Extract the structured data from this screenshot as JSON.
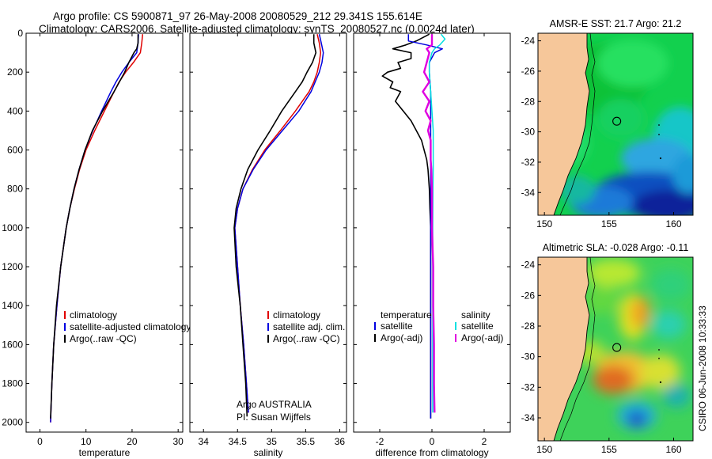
{
  "header": {
    "line1": "Argo profile: CS 5900871_97 26-May-2008 20080529_212 29.341S 155.614E",
    "line2": "Climatology: CARS2006. Satellite-adjusted climatology: synTS_20080527.nc (0.0024d later)"
  },
  "chart_data": [
    {
      "type": "line",
      "panel": "temperature",
      "xlabel": "temperature",
      "ylabel": "",
      "xlim": [
        -3,
        31
      ],
      "ylim": [
        2050,
        0
      ],
      "xticks": [
        0,
        10,
        20,
        30
      ],
      "yticks": [
        0,
        200,
        400,
        600,
        800,
        1000,
        1200,
        1400,
        1600,
        1800,
        2000
      ],
      "legend": [
        "climatology",
        "satellite-adjusted climatology",
        "Argo(..raw -QC)"
      ],
      "series": [
        {
          "name": "climatology",
          "color": "#e00000",
          "depth": [
            5,
            50,
            100,
            150,
            200,
            250,
            300,
            400,
            500,
            600,
            700,
            800,
            900,
            1000,
            1200,
            1400,
            1600,
            1800,
            2000
          ],
          "values": [
            22.3,
            22.1,
            21.8,
            20.3,
            18.6,
            17.2,
            16.1,
            14.0,
            11.9,
            10.0,
            8.6,
            7.5,
            6.5,
            5.7,
            4.5,
            3.7,
            3.0,
            2.6,
            2.3
          ]
        },
        {
          "name": "satellite-adjusted climatology",
          "color": "#0000e0",
          "depth": [
            5,
            50,
            100,
            150,
            200,
            250,
            300,
            400,
            500,
            600,
            700,
            800,
            900,
            1000,
            1200,
            1400,
            1600,
            1800,
            2000
          ],
          "values": [
            21.4,
            21.3,
            21.0,
            19.3,
            17.8,
            16.5,
            15.4,
            13.4,
            11.5,
            9.8,
            8.5,
            7.4,
            6.5,
            5.7,
            4.5,
            3.7,
            3.0,
            2.6,
            2.3
          ]
        },
        {
          "name": "Argo(..raw -QC)",
          "color": "#000000",
          "depth": [
            5,
            50,
            80,
            100,
            150,
            200,
            300,
            400,
            500,
            600,
            700,
            800,
            900,
            1000,
            1200,
            1400,
            1600,
            1800,
            1980
          ],
          "values": [
            21.3,
            21.3,
            21.0,
            20.4,
            19.3,
            18.4,
            16.1,
            13.6,
            11.4,
            9.8,
            8.5,
            7.4,
            6.5,
            5.7,
            4.5,
            3.6,
            3.0,
            2.6,
            2.3
          ]
        }
      ]
    },
    {
      "type": "line",
      "panel": "salinity",
      "xlabel": "salinity",
      "ylabel": "",
      "xlim": [
        33.8,
        36.1
      ],
      "ylim": [
        2050,
        0
      ],
      "xticks": [
        34,
        34.5,
        35,
        35.5,
        36
      ],
      "legend": [
        "climatology",
        "satellite adj. clim.",
        "Argo(..raw -QC)"
      ],
      "annotation": [
        "Argo AUSTRALIA",
        "PI: Susan Wijffels"
      ],
      "series": [
        {
          "name": "climatology",
          "color": "#e00000",
          "depth": [
            5,
            50,
            100,
            150,
            200,
            250,
            300,
            400,
            500,
            600,
            700,
            800,
            900,
            1000,
            1200,
            1400,
            1600,
            1800,
            1950
          ],
          "values": [
            35.67,
            35.7,
            35.72,
            35.7,
            35.67,
            35.62,
            35.55,
            35.35,
            35.13,
            34.9,
            34.72,
            34.58,
            34.5,
            34.46,
            34.5,
            34.54,
            34.59,
            34.63,
            34.66
          ]
        },
        {
          "name": "satellite adj. clim.",
          "color": "#0000e0",
          "depth": [
            5,
            50,
            100,
            150,
            200,
            250,
            300,
            400,
            500,
            600,
            700,
            800,
            900,
            1000,
            1200,
            1400,
            1600,
            1800,
            1950
          ],
          "values": [
            35.7,
            35.73,
            35.76,
            35.74,
            35.7,
            35.64,
            35.58,
            35.4,
            35.16,
            34.92,
            34.73,
            34.58,
            34.5,
            34.46,
            34.5,
            34.54,
            34.59,
            34.63,
            34.66
          ]
        },
        {
          "name": "Argo(..raw -QC)",
          "color": "#000000",
          "depth": [
            5,
            50,
            100,
            150,
            200,
            250,
            300,
            400,
            500,
            600,
            700,
            800,
            900,
            1000,
            1200,
            1400,
            1600,
            1800,
            1970
          ],
          "values": [
            35.62,
            35.62,
            35.65,
            35.6,
            35.52,
            35.45,
            35.35,
            35.15,
            34.98,
            34.8,
            34.65,
            34.55,
            34.48,
            34.45,
            34.48,
            34.54,
            34.58,
            34.62,
            34.64
          ]
        }
      ]
    },
    {
      "type": "line",
      "panel": "difference",
      "xlabel": "difference from climatology",
      "ylabel": "",
      "xlim": [
        -3.0,
        3.0
      ],
      "ylim": [
        2050,
        0
      ],
      "xticks": [
        -2,
        0,
        2
      ],
      "legend": {
        "temperature": [
          "satellite",
          "Argo(-adj)"
        ],
        "salinity": [
          "satellite",
          "Argo(-adj)"
        ],
        "headers": [
          "temperature",
          "salinity"
        ]
      },
      "series": [
        {
          "name": "temperature satellite",
          "color": "#0000e0",
          "depth": [
            5,
            40,
            60,
            80,
            100,
            150,
            200,
            300,
            400,
            600,
            800,
            1000,
            1200,
            1400,
            1600,
            1800,
            1980
          ],
          "values": [
            -0.9,
            -0.9,
            -0.2,
            0.4,
            0.1,
            -0.1,
            -0.1,
            -0.05,
            -0.05,
            -0.05,
            -0.05,
            -0.05,
            -0.05,
            -0.05,
            -0.05,
            -0.05,
            -0.05
          ]
        },
        {
          "name": "temperature Argo(-adj)",
          "color": "#000000",
          "depth": [
            5,
            40,
            60,
            80,
            100,
            130,
            150,
            180,
            200,
            220,
            250,
            280,
            300,
            350,
            400,
            450,
            500,
            550,
            600,
            650,
            700,
            800,
            900,
            1000,
            1200,
            1400,
            1600,
            1800,
            1980
          ],
          "values": [
            -0.1,
            -0.6,
            -1.0,
            -1.5,
            -0.8,
            -0.8,
            -1.3,
            -1.2,
            -1.7,
            -1.9,
            -1.5,
            -1.6,
            -1.2,
            -1.4,
            -1.1,
            -0.8,
            -0.6,
            -0.4,
            -0.3,
            -0.2,
            -0.15,
            -0.1,
            -0.08,
            -0.05,
            -0.05,
            -0.05,
            -0.05,
            -0.05,
            -0.05
          ]
        },
        {
          "name": "salinity satellite",
          "color": "#00e0e0",
          "depth": [
            5,
            30,
            60,
            80,
            100,
            150,
            200,
            300,
            400,
            500,
            600,
            700,
            800,
            1000,
            1200,
            1400,
            1600,
            1800,
            1950
          ],
          "values": [
            0.35,
            0.5,
            0.3,
            0.1,
            0.0,
            -0.1,
            -0.1,
            -0.05,
            0.0,
            0.05,
            0.05,
            0.05,
            0.04,
            0.03,
            0.03,
            0.03,
            0.03,
            0.03,
            0.03
          ]
        },
        {
          "name": "salinity Argo(-adj)",
          "color": "#e000e0",
          "depth": [
            5,
            60,
            80,
            100,
            150,
            200,
            250,
            300,
            350,
            400,
            450,
            500,
            550,
            600,
            650,
            700,
            800,
            1000,
            1200,
            1400,
            1600,
            1800,
            1950
          ],
          "values": [
            0.0,
            0.0,
            -0.2,
            -0.1,
            -0.2,
            -0.3,
            -0.1,
            -0.35,
            -0.1,
            -0.25,
            -0.05,
            -0.15,
            -0.05,
            -0.05,
            -0.05,
            -0.02,
            0.0,
            0.0,
            0.05,
            0.05,
            0.08,
            0.08,
            0.1
          ]
        }
      ]
    },
    {
      "type": "heatmap",
      "panel": "sst-map",
      "title": "AMSR-E SST: 21.7 Argo: 21.2",
      "xlim": [
        149.5,
        161.5
      ],
      "ylim": [
        -35.5,
        -23.5
      ],
      "xticks": [
        150,
        155,
        160
      ],
      "yticks": [
        -24,
        -26,
        -28,
        -30,
        -32,
        -34
      ],
      "float_marker": {
        "lon": 155.6,
        "lat": -29.3
      }
    },
    {
      "type": "heatmap",
      "panel": "sla-map",
      "title": "Altimetric SLA: -0.028 Argo: -0.11",
      "xlim": [
        149.5,
        161.5
      ],
      "ylim": [
        -35.5,
        -23.5
      ],
      "xticks": [
        150,
        155,
        160
      ],
      "yticks": [
        -24,
        -26,
        -28,
        -30,
        -32,
        -34
      ],
      "float_marker": {
        "lon": 155.6,
        "lat": -29.4
      }
    }
  ],
  "footer": {
    "stamp": "CSIRO 06-Jun-2008 10:33:33"
  },
  "colors": {
    "climatology": "#e00000",
    "satellite": "#0000e0",
    "argo": "#000000",
    "salinity_satellite": "#00e0e0",
    "salinity_argo": "#e000e0",
    "land": "#f6c79a"
  }
}
